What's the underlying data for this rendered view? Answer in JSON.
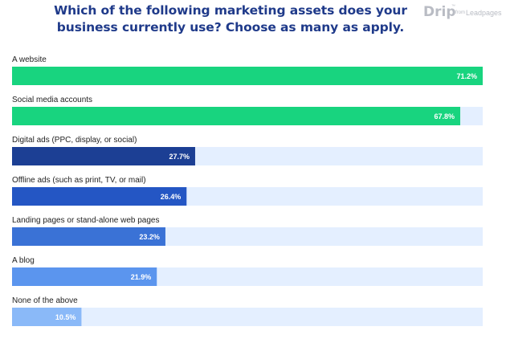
{
  "header": {
    "title_line1": "Which of the following marketing assets does your",
    "title_line2": "business currently use? Choose as many as apply.",
    "logo_main": "Drip",
    "logo_tm": "™",
    "logo_from": "from",
    "logo_brand": "Leadpages"
  },
  "colors": {
    "title": "#1f3a8a",
    "track": "#e4efff",
    "labels": "#222222"
  },
  "chart_data": {
    "type": "bar",
    "orientation": "horizontal",
    "title": "Which of the following marketing assets does your business currently use? Choose as many as apply.",
    "categories": [
      "A website",
      "Social media accounts",
      "Digital ads (PPC, display, or social)",
      "Offline ads (such as print, TV, or mail)",
      "Landing pages or stand-alone web pages",
      "A blog",
      "None of the above"
    ],
    "values": [
      71.2,
      67.8,
      27.7,
      26.4,
      23.2,
      21.9,
      10.5
    ],
    "value_labels": [
      "71.2%",
      "67.8%",
      "27.7%",
      "26.4%",
      "23.2%",
      "21.9%",
      "10.5%"
    ],
    "bar_colors": [
      "#18d47f",
      "#18d47f",
      "#1c3f94",
      "#2456c4",
      "#3a72d6",
      "#5b95ee",
      "#8ab9f8"
    ],
    "xlim": [
      0,
      71.2
    ],
    "grid": false,
    "legend": "none"
  }
}
